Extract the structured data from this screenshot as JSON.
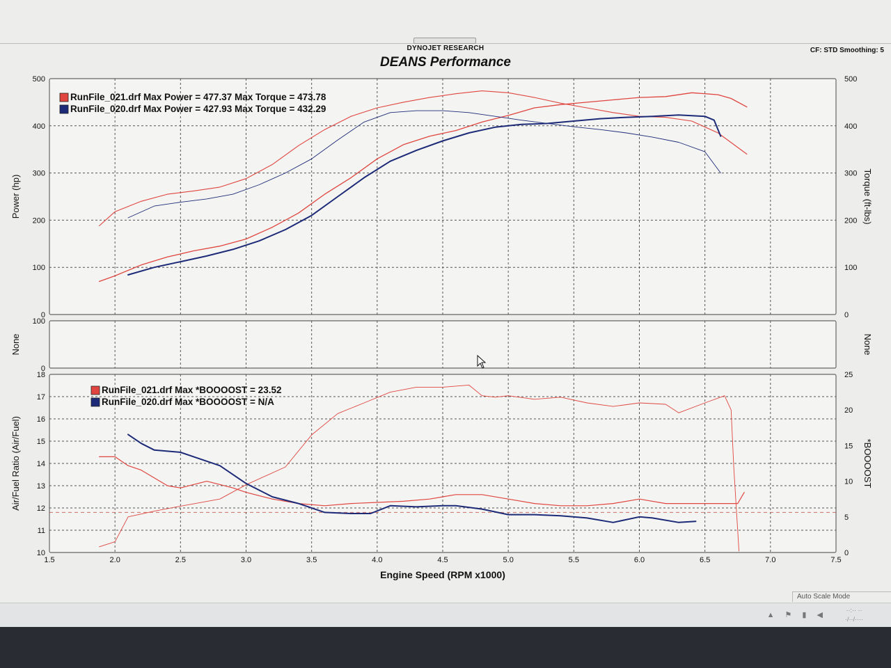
{
  "header": {
    "brand": "DYNOJET RESEARCH",
    "title": "DEANS Performance",
    "cf_info": "CF: STD  Smoothing: 5"
  },
  "status": {
    "auto_scale": "Auto Scale Mode"
  },
  "colors": {
    "run_021": "#e0453f",
    "run_020": "#1c2a78",
    "grid": "#555555"
  },
  "chart_data": [
    {
      "type": "line",
      "panel": "power-torque",
      "ylabel": "Power (hp)",
      "ylabel_right": "Torque (ft-lbs)",
      "ylim": [
        0,
        500
      ],
      "y_ticks": [
        "0",
        "100",
        "200",
        "300",
        "400",
        "500"
      ],
      "xlim": [
        1.5,
        7.5
      ],
      "grid": true,
      "legend": [
        {
          "marker": "red",
          "text": "RunFile_021.drf Max Power = 477.37 Max Torque = 473.78"
        },
        {
          "marker": "blue",
          "text": "RunFile_020.drf Max Power = 427.93 Max Torque = 432.29"
        }
      ],
      "series": [
        {
          "name": "RunFile_021.drf",
          "color": "#e0453f",
          "power_x": [
            1.88,
            2.0,
            2.2,
            2.4,
            2.6,
            2.8,
            3.0,
            3.2,
            3.4,
            3.6,
            3.8,
            4.0,
            4.2,
            4.4,
            4.6,
            4.8,
            5.0,
            5.2,
            5.4,
            5.6,
            5.8,
            6.0,
            6.2,
            6.4,
            6.6,
            6.7,
            6.82
          ],
          "power_y": [
            70,
            82,
            105,
            122,
            135,
            145,
            160,
            185,
            215,
            255,
            290,
            330,
            360,
            378,
            390,
            408,
            422,
            438,
            445,
            450,
            455,
            460,
            462,
            470,
            466,
            458,
            440
          ],
          "torque_x": [
            1.88,
            2.0,
            2.2,
            2.4,
            2.6,
            2.8,
            3.0,
            3.2,
            3.4,
            3.6,
            3.8,
            4.0,
            4.2,
            4.4,
            4.6,
            4.8,
            5.0,
            5.2,
            5.4,
            5.6,
            5.8,
            6.0,
            6.2,
            6.4,
            6.6,
            6.82
          ],
          "torque_y": [
            188,
            218,
            240,
            255,
            262,
            270,
            288,
            318,
            358,
            392,
            420,
            438,
            450,
            460,
            468,
            474,
            470,
            460,
            448,
            438,
            428,
            420,
            418,
            410,
            385,
            340
          ]
        },
        {
          "name": "RunFile_020.drf",
          "color": "#1c2a78",
          "power_x": [
            2.1,
            2.3,
            2.5,
            2.7,
            2.9,
            3.1,
            3.3,
            3.5,
            3.7,
            3.9,
            4.1,
            4.3,
            4.5,
            4.7,
            4.9,
            5.1,
            5.3,
            5.5,
            5.7,
            5.9,
            6.1,
            6.3,
            6.5,
            6.57,
            6.62
          ],
          "power_y": [
            84,
            100,
            112,
            124,
            138,
            156,
            180,
            210,
            250,
            290,
            325,
            348,
            368,
            385,
            397,
            403,
            405,
            410,
            415,
            418,
            420,
            423,
            420,
            412,
            378
          ],
          "torque_x": [
            2.1,
            2.3,
            2.5,
            2.7,
            2.9,
            3.1,
            3.3,
            3.5,
            3.7,
            3.9,
            4.1,
            4.3,
            4.5,
            4.7,
            4.9,
            5.1,
            5.3,
            5.5,
            5.7,
            5.9,
            6.1,
            6.3,
            6.5,
            6.62
          ],
          "torque_y": [
            205,
            230,
            238,
            245,
            255,
            275,
            300,
            330,
            370,
            408,
            428,
            432,
            432,
            428,
            420,
            412,
            405,
            398,
            392,
            385,
            376,
            365,
            345,
            300
          ]
        }
      ]
    },
    {
      "type": "line",
      "panel": "none",
      "ylabel": "None",
      "ylabel_right": "None",
      "ylim": [
        0,
        100
      ],
      "y_ticks": [
        "0",
        "100"
      ],
      "xlim": [
        1.5,
        7.5
      ],
      "grid": true
    },
    {
      "type": "line",
      "panel": "afr-boost",
      "title": "",
      "xlabel": "Engine Speed (RPM x1000)",
      "ylabel": "Air/Fuel Ratio (Air/Fuel)",
      "ylabel_right": "*BOOOOST",
      "ylim": [
        10,
        18
      ],
      "y_ticks": [
        "10",
        "11",
        "12",
        "13",
        "14",
        "15",
        "16",
        "17",
        "18"
      ],
      "y2lim": [
        0,
        25
      ],
      "y2_ticks": [
        "0",
        "5",
        "10",
        "15",
        "20",
        "25"
      ],
      "xlim": [
        1.5,
        7.5
      ],
      "x_ticks": [
        "1.5",
        "2.0",
        "2.5",
        "3.0",
        "3.5",
        "4.0",
        "4.5",
        "5.0",
        "5.5",
        "6.0",
        "6.5",
        "7.0",
        "7.5"
      ],
      "reference_afr": 11.8,
      "grid": true,
      "legend": [
        {
          "marker": "red",
          "text": "RunFile_021.drf Max *BOOOOST = 23.52"
        },
        {
          "marker": "blue",
          "text": "RunFile_020.drf Max *BOOOOST = N/A"
        }
      ],
      "series": [
        {
          "name": "RunFile_021.drf",
          "color": "#e0453f",
          "afr_x": [
            1.88,
            2.0,
            2.1,
            2.2,
            2.4,
            2.5,
            2.7,
            2.9,
            3.0,
            3.2,
            3.4,
            3.6,
            3.8,
            4.0,
            4.2,
            4.4,
            4.6,
            4.8,
            5.0,
            5.2,
            5.4,
            5.6,
            5.8,
            6.0,
            6.2,
            6.4,
            6.6,
            6.75,
            6.8
          ],
          "afr_y": [
            14.3,
            14.3,
            13.9,
            13.7,
            13.0,
            12.9,
            13.2,
            12.9,
            12.7,
            12.4,
            12.2,
            12.1,
            12.2,
            12.25,
            12.3,
            12.4,
            12.6,
            12.6,
            12.4,
            12.2,
            12.1,
            12.1,
            12.2,
            12.4,
            12.2,
            12.2,
            12.2,
            12.2,
            12.7
          ],
          "boost_x": [
            1.88,
            2.0,
            2.1,
            2.3,
            2.5,
            2.8,
            3.0,
            3.3,
            3.5,
            3.7,
            3.9,
            4.1,
            4.3,
            4.5,
            4.7,
            4.8,
            4.9,
            5.0,
            5.2,
            5.4,
            5.6,
            5.8,
            6.0,
            6.2,
            6.3,
            6.5,
            6.65,
            6.7,
            6.72,
            6.76
          ],
          "boost_y": [
            0.8,
            1.5,
            5,
            5.8,
            6.5,
            7.5,
            9.5,
            12.0,
            16.5,
            19.5,
            21.0,
            22.5,
            23.2,
            23.2,
            23.5,
            22.0,
            21.8,
            22.0,
            21.5,
            21.8,
            21.0,
            20.5,
            21.0,
            20.8,
            19.6,
            21.0,
            22.0,
            20.0,
            12.0,
            0.2
          ]
        },
        {
          "name": "RunFile_020.drf",
          "color": "#1c2a78",
          "afr_x": [
            2.1,
            2.2,
            2.3,
            2.5,
            2.6,
            2.8,
            3.0,
            3.2,
            3.4,
            3.6,
            3.8,
            3.95,
            4.1,
            4.3,
            4.5,
            4.6,
            4.8,
            5.0,
            5.2,
            5.4,
            5.6,
            5.8,
            6.0,
            6.1,
            6.3,
            6.43
          ],
          "afr_y": [
            15.3,
            14.9,
            14.6,
            14.5,
            14.3,
            13.9,
            13.1,
            12.5,
            12.2,
            11.8,
            11.75,
            11.75,
            12.1,
            12.05,
            12.1,
            12.1,
            11.95,
            11.7,
            11.7,
            11.65,
            11.55,
            11.35,
            11.6,
            11.55,
            11.35,
            11.4
          ]
        }
      ]
    }
  ]
}
